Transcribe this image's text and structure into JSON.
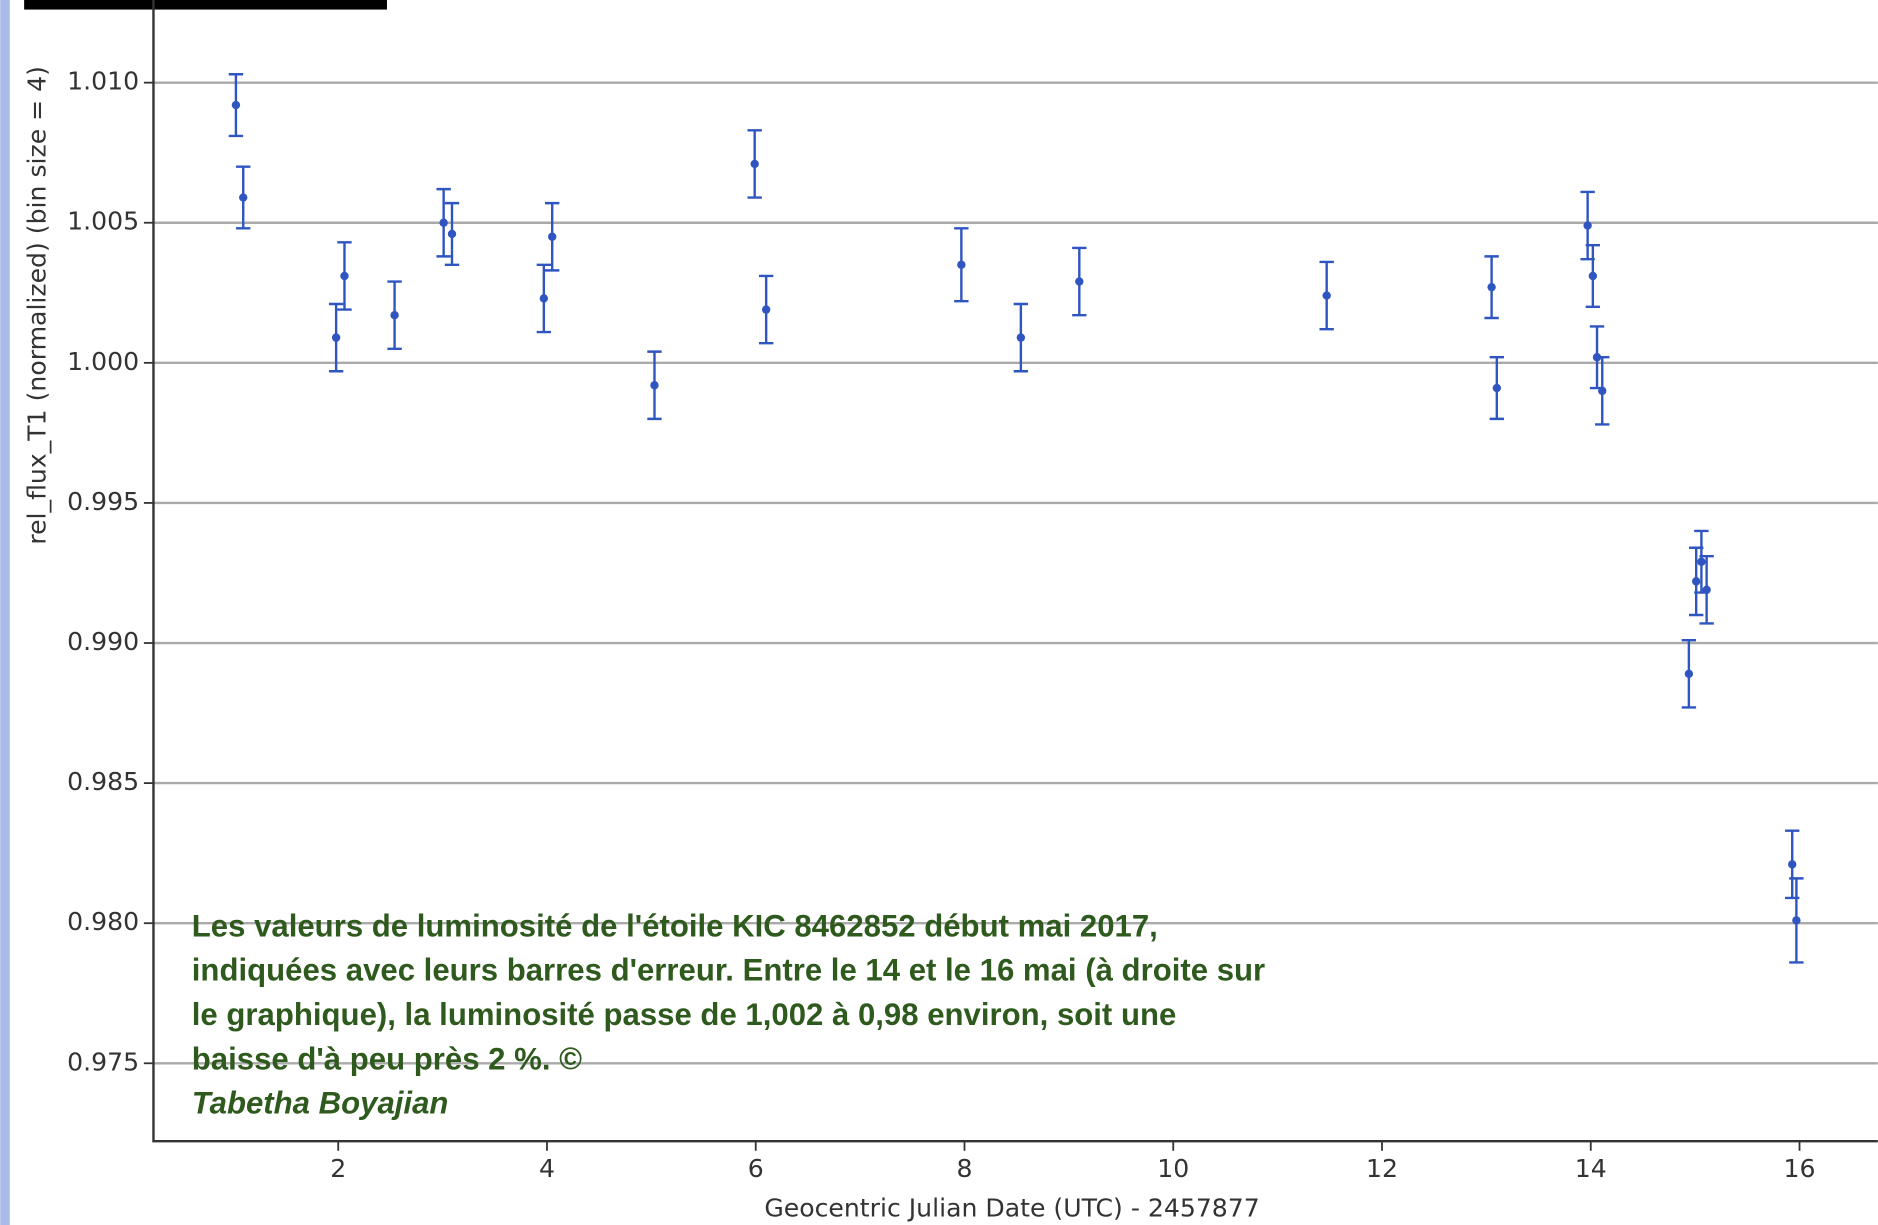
{
  "chart_data": {
    "type": "scatter",
    "xlabel": "Geocentric Julian Date (UTC) - 2457877",
    "ylabel": "rel_flux_T1 (normalized) (bin size = 4)",
    "annotation": "Les valeurs de luminosité de l'étoile KIC 8462852 début mai 2017, indiquées avec leurs barres d'erreur. Entre le 14 et le 16 mai (à droite sur le graphique), la luminosité passe de 1,002 à 0,98 environ, soit une baisse d'à peu près 2 %. ©",
    "credit": "Tabetha Boyajian",
    "xlim": [
      0.23,
      16.75
    ],
    "ylim": [
      0.97222,
      1.01295
    ],
    "xticks": [
      2,
      4,
      6,
      8,
      10,
      12,
      14,
      16
    ],
    "yticks": [
      {
        "value": 0.975,
        "label": "0.975"
      },
      {
        "value": 0.98,
        "label": "0.980"
      },
      {
        "value": 0.985,
        "label": "0.985"
      },
      {
        "value": 0.99,
        "label": "0.990"
      },
      {
        "value": 0.995,
        "label": "0.995"
      },
      {
        "value": 1.0,
        "label": "1.000"
      },
      {
        "value": 1.005,
        "label": "1.005"
      },
      {
        "value": 1.01,
        "label": "1.010"
      }
    ],
    "grid": true,
    "series": [
      {
        "color": "#2f55c0",
        "x": [
          1.02,
          1.09,
          1.98,
          2.06,
          2.54,
          3.01,
          3.09,
          3.97,
          4.05,
          5.03,
          5.99,
          6.1,
          7.97,
          8.54,
          9.1,
          11.47,
          13.05,
          13.1,
          13.97,
          14.02,
          14.06,
          14.11,
          14.94,
          15.01,
          15.06,
          15.11,
          15.93,
          15.97
        ],
        "values": [
          1.0092,
          1.0059,
          1.0009,
          1.0031,
          1.0017,
          1.005,
          1.0046,
          1.0023,
          1.0045,
          0.9992,
          1.0071,
          1.0019,
          1.0035,
          1.0009,
          1.0029,
          1.0024,
          1.0027,
          0.9991,
          1.0049,
          1.0031,
          1.0002,
          0.999,
          0.9889,
          0.9922,
          0.9929,
          0.9919,
          0.9821,
          0.9801
        ],
        "errors": [
          0.0011,
          0.0011,
          0.0012,
          0.0012,
          0.0012,
          0.0012,
          0.0011,
          0.0012,
          0.0012,
          0.0012,
          0.0012,
          0.0012,
          0.0013,
          0.0012,
          0.0012,
          0.0012,
          0.0011,
          0.0011,
          0.0012,
          0.0011,
          0.0011,
          0.0012,
          0.0012,
          0.0012,
          0.0011,
          0.0012,
          0.0012,
          0.0015
        ]
      }
    ]
  }
}
